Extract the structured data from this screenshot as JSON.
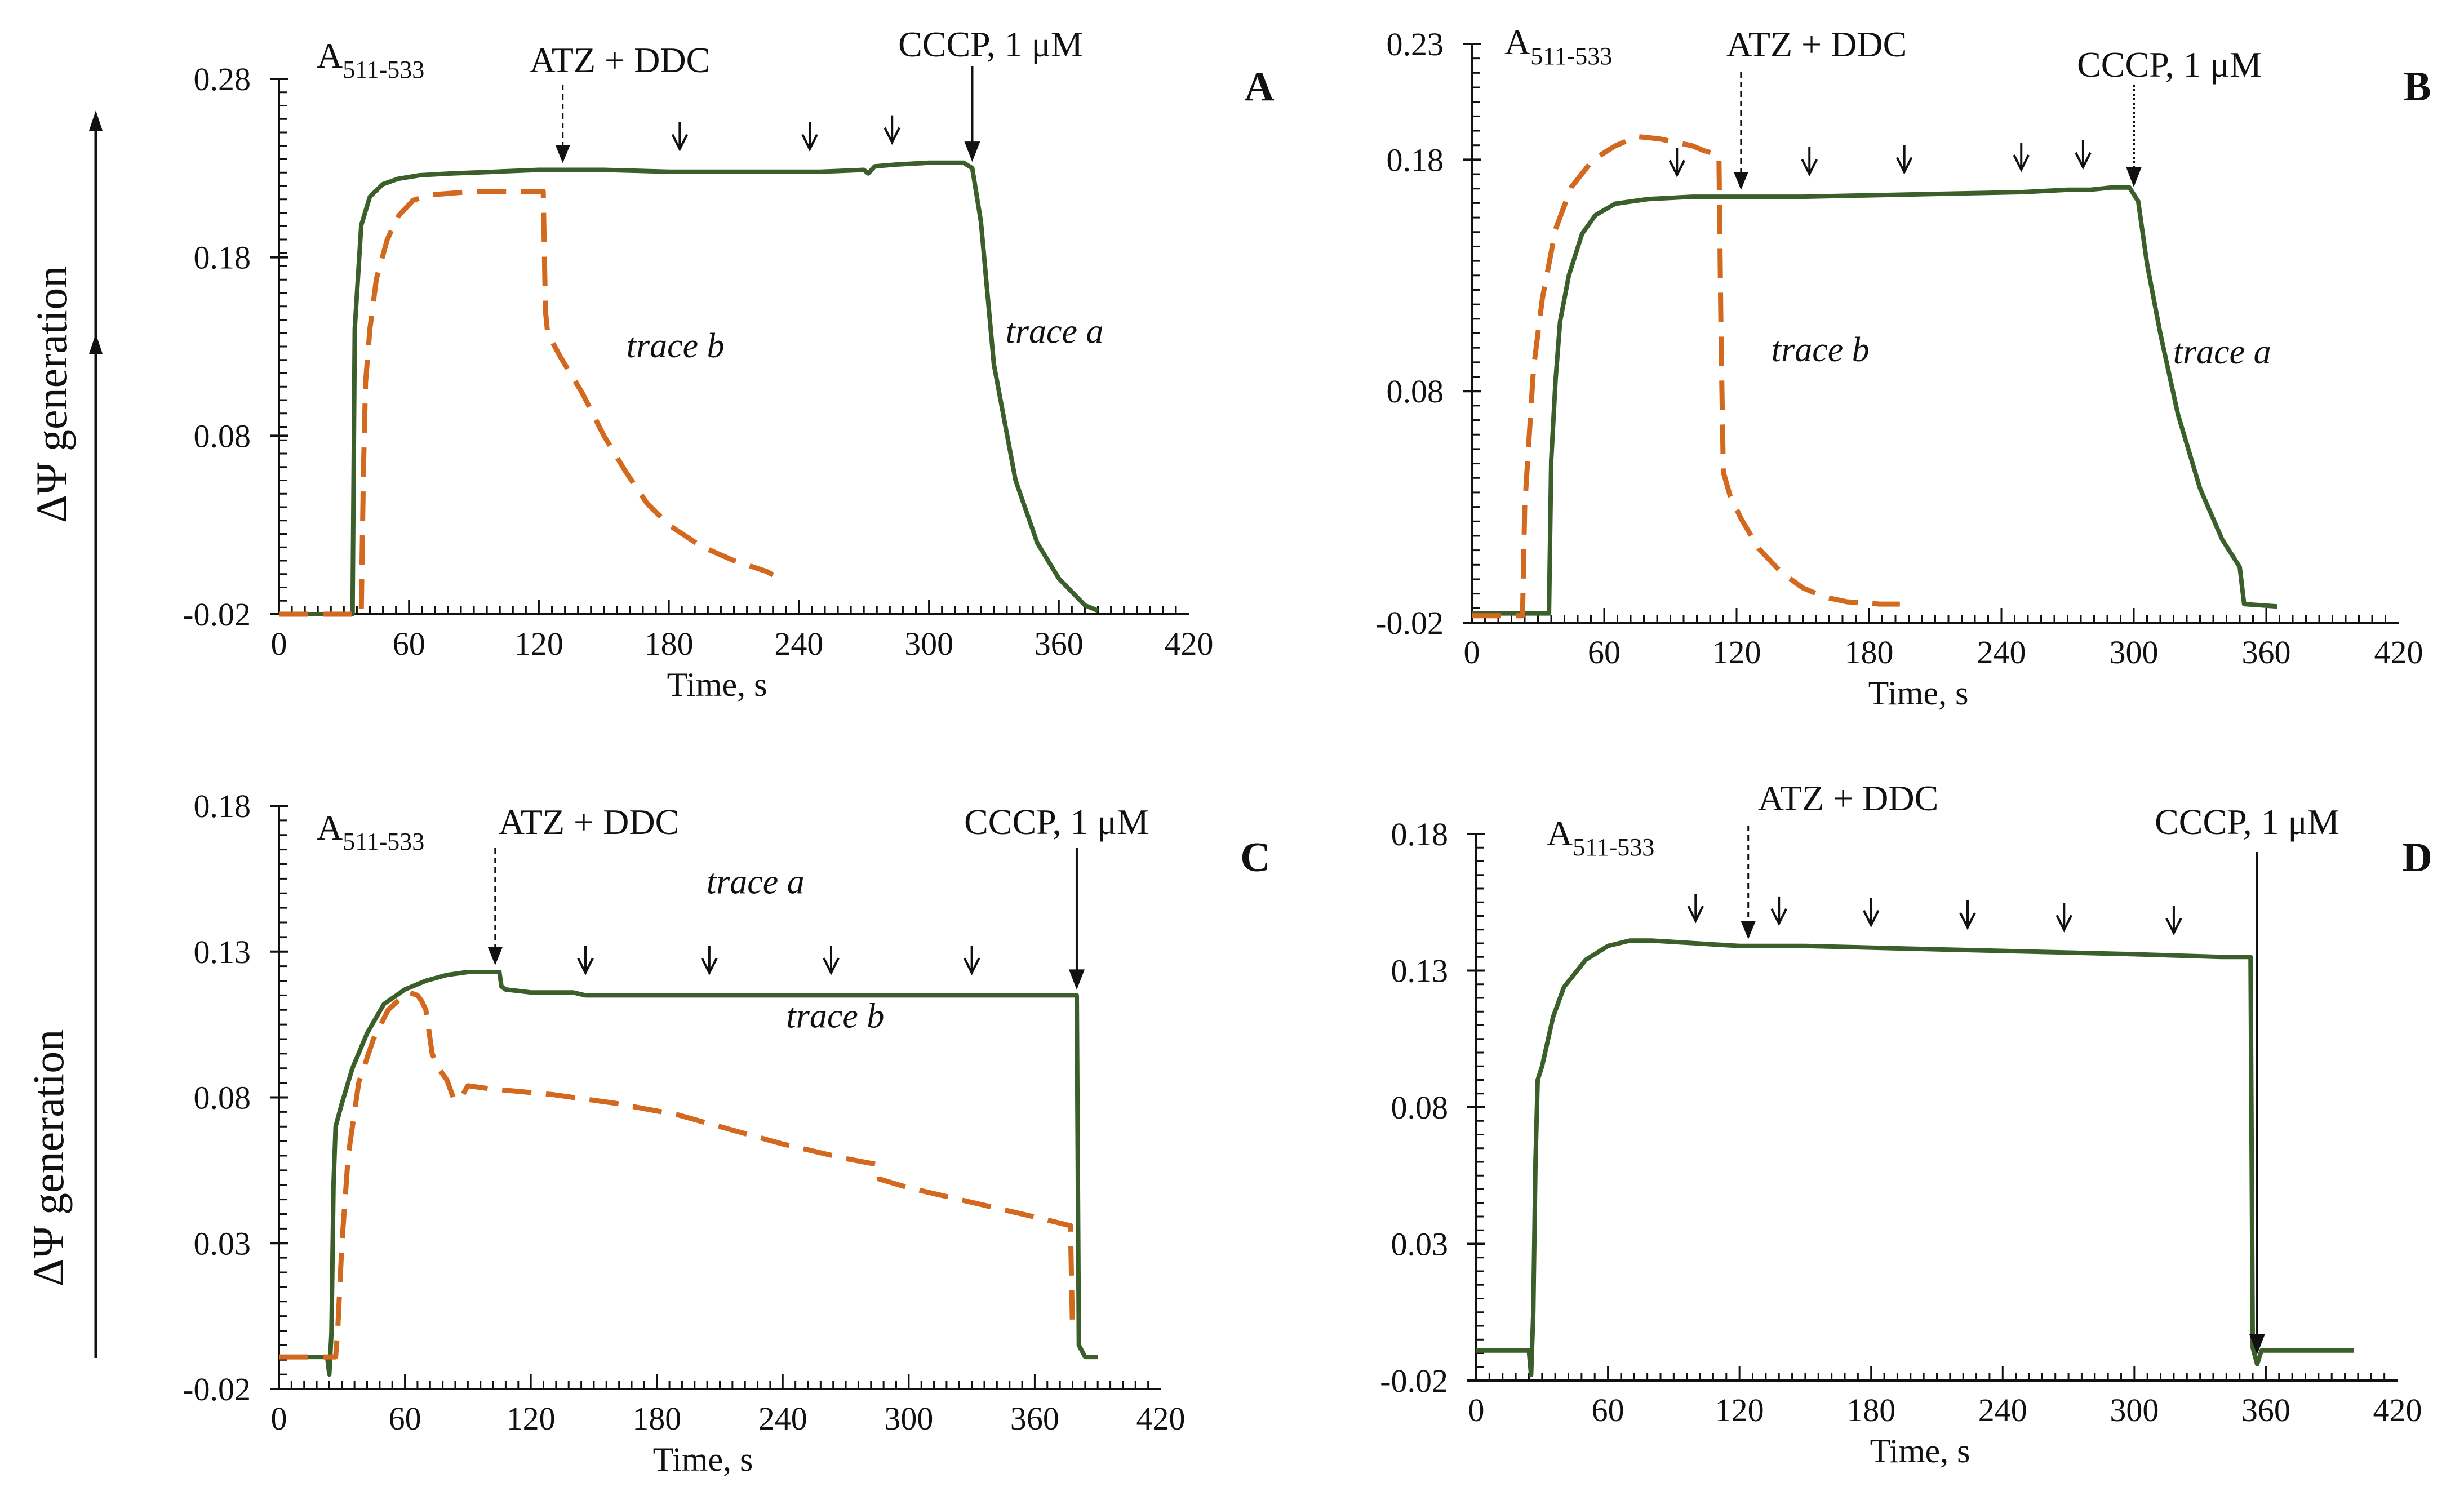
{
  "figure": {
    "y_axis_title": "ΔΨ generation",
    "y_axis_titles_shown_on": [
      "A",
      "C"
    ],
    "x_axis_title": "Time, s"
  },
  "colors": {
    "trace_a": "#3a5f2a",
    "trace_b": "#d2691e",
    "axis": "#111111"
  },
  "chart_data": [
    {
      "panel": "A",
      "type": "line",
      "xlabel": "Time, s",
      "ylabel": "ΔΨ generation",
      "xlim": [
        0,
        420
      ],
      "ylim": [
        -0.02,
        0.28
      ],
      "xticks": [
        0,
        60,
        120,
        180,
        240,
        300,
        360,
        420
      ],
      "xtick_labels": [
        "0",
        "60",
        "120",
        "180",
        "240",
        "300",
        "360",
        "420"
      ],
      "yticks": [
        -0.02,
        0.08,
        0.18,
        0.28
      ],
      "ytick_labels": [
        "-0.02",
        "0.08",
        "0.18",
        "0.28"
      ],
      "annotations": {
        "label": "A",
        "label_sub": "511-533",
        "atz_text": "ATZ + DDC",
        "atz_time": 131,
        "cccp_text": "CCCP, 1 μM",
        "cccp_time": 320,
        "small_arrow_times": [
          185,
          245,
          283
        ]
      },
      "trace_labels": [
        {
          "series": "trace b",
          "text": "trace b",
          "x": 183,
          "y": 0.124
        },
        {
          "series": "trace a",
          "text": "trace a",
          "x": 358,
          "y": 0.132
        }
      ],
      "series": [
        {
          "name": "trace a",
          "style": "solid",
          "x": [
            0,
            34,
            35,
            38,
            42,
            48,
            55,
            65,
            80,
            100,
            120,
            131,
            150,
            180,
            220,
            250,
            270,
            272,
            275,
            285,
            300,
            316,
            320,
            324,
            330,
            340,
            350,
            360,
            372,
            378
          ],
          "y": [
            -0.02,
            -0.02,
            0.14,
            0.198,
            0.214,
            0.221,
            0.224,
            0.226,
            0.227,
            0.228,
            0.229,
            0.229,
            0.229,
            0.228,
            0.228,
            0.228,
            0.229,
            0.227,
            0.231,
            0.232,
            0.233,
            0.233,
            0.23,
            0.2,
            0.12,
            0.055,
            0.02,
            0.0,
            -0.015,
            -0.018
          ]
        },
        {
          "name": "trace b",
          "style": "dashed",
          "x": [
            0,
            38,
            39,
            40,
            42,
            45,
            50,
            55,
            62,
            70,
            80,
            90,
            100,
            110,
            122,
            123,
            124,
            126,
            130,
            140,
            150,
            160,
            170,
            180,
            195,
            210,
            225,
            228
          ],
          "y": [
            -0.02,
            -0.02,
            0.06,
            0.11,
            0.14,
            0.168,
            0.19,
            0.203,
            0.212,
            0.215,
            0.216,
            0.217,
            0.217,
            0.217,
            0.217,
            0.15,
            0.138,
            0.133,
            0.124,
            0.104,
            0.08,
            0.06,
            0.042,
            0.03,
            0.018,
            0.01,
            0.004,
            0.002
          ]
        }
      ]
    },
    {
      "panel": "B",
      "type": "line",
      "xlabel": "Time, s",
      "ylabel": "",
      "xlim": [
        0,
        420
      ],
      "ylim": [
        -0.02,
        0.23
      ],
      "xticks": [
        0,
        60,
        120,
        180,
        240,
        300,
        360,
        420
      ],
      "xtick_labels": [
        "0",
        "60",
        "120",
        "180",
        "240",
        "300",
        "360",
        "420"
      ],
      "yticks": [
        -0.02,
        0.08,
        0.18,
        0.23
      ],
      "ytick_labels": [
        "-0.02",
        "0.08",
        "0.18",
        "0.23"
      ],
      "annotations": {
        "label": "A",
        "label_sub": "511-533",
        "atz_text": "ATZ + DDC",
        "atz_time": 122,
        "cccp_text": "CCCP, 1 μM",
        "cccp_time": 300,
        "small_arrow_times": [
          93,
          153,
          196,
          249,
          277
        ]
      },
      "trace_labels": [
        {
          "series": "trace b",
          "text": "trace b",
          "x": 158,
          "y": 0.093
        },
        {
          "series": "trace a",
          "text": "trace a",
          "x": 340,
          "y": 0.092
        }
      ],
      "series": [
        {
          "name": "trace a",
          "style": "solid",
          "x": [
            0,
            35,
            36,
            38,
            40,
            44,
            50,
            56,
            65,
            80,
            100,
            120,
            150,
            200,
            250,
            270,
            280,
            290,
            295,
            298,
            302,
            306,
            312,
            320,
            330,
            340,
            348,
            350,
            365
          ],
          "y": [
            -0.016,
            -0.016,
            0.05,
            0.085,
            0.11,
            0.13,
            0.148,
            0.156,
            0.161,
            0.163,
            0.164,
            0.164,
            0.164,
            0.165,
            0.166,
            0.167,
            0.167,
            0.168,
            0.168,
            0.168,
            0.162,
            0.135,
            0.105,
            0.07,
            0.038,
            0.016,
            0.004,
            -0.012,
            -0.013
          ]
        },
        {
          "name": "trace b",
          "style": "dashed",
          "x": [
            0,
            23,
            24,
            26,
            28,
            32,
            38,
            45,
            55,
            65,
            75,
            85,
            95,
            100,
            105,
            112,
            113,
            114,
            117,
            122,
            130,
            140,
            150,
            160,
            170,
            185,
            194
          ],
          "y": [
            -0.017,
            -0.017,
            0.03,
            0.06,
            0.09,
            0.12,
            0.15,
            0.168,
            0.18,
            0.186,
            0.19,
            0.189,
            0.187,
            0.186,
            0.184,
            0.182,
            0.1,
            0.045,
            0.035,
            0.025,
            0.012,
            0.002,
            -0.005,
            -0.009,
            -0.011,
            -0.012,
            -0.012
          ]
        }
      ]
    },
    {
      "panel": "C",
      "type": "line",
      "xlabel": "Time, s",
      "ylabel": "ΔΨ generation",
      "xlim": [
        0,
        420
      ],
      "ylim": [
        -0.02,
        0.18
      ],
      "xticks": [
        0,
        60,
        120,
        180,
        240,
        300,
        360,
        420
      ],
      "xtick_labels": [
        "0",
        "60",
        "120",
        "180",
        "240",
        "300",
        "360",
        "420"
      ],
      "yticks": [
        -0.02,
        0.03,
        0.08,
        0.13,
        0.18
      ],
      "ytick_labels": [
        "-0.02",
        "0.03",
        "0.08",
        "0.13",
        "0.18"
      ],
      "annotations": {
        "label": "A",
        "label_sub": "511-533",
        "atz_text": "ATZ + DDC",
        "atz_time": 103,
        "cccp_text": "CCCP, 1 μM",
        "cccp_time": 380,
        "small_arrow_times": [
          146,
          205,
          263,
          330
        ]
      },
      "trace_labels": [
        {
          "series": "trace a",
          "text": "trace a",
          "x": 227,
          "y": 0.15
        },
        {
          "series": "trace b",
          "text": "trace b",
          "x": 265,
          "y": 0.104
        }
      ],
      "series": [
        {
          "name": "trace a",
          "style": "solid",
          "x": [
            0,
            23,
            24,
            25,
            26,
            27,
            30,
            35,
            42,
            50,
            60,
            70,
            80,
            90,
            100,
            105,
            106,
            108,
            120,
            140,
            146,
            150,
            200,
            250,
            300,
            350,
            380,
            381,
            384,
            390
          ],
          "y": [
            -0.009,
            -0.009,
            -0.015,
            -0.001,
            0.05,
            0.07,
            0.078,
            0.09,
            0.102,
            0.112,
            0.117,
            0.12,
            0.122,
            0.123,
            0.123,
            0.123,
            0.118,
            0.117,
            0.116,
            0.116,
            0.115,
            0.115,
            0.115,
            0.115,
            0.115,
            0.115,
            0.115,
            -0.005,
            -0.009,
            -0.009
          ]
        },
        {
          "name": "trace b",
          "style": "dashed",
          "x": [
            0,
            27,
            28,
            30,
            33,
            38,
            45,
            52,
            58,
            62,
            66,
            68,
            70,
            71,
            73,
            76,
            80,
            83,
            86,
            90,
            100,
            130,
            160,
            190,
            210,
            240,
            270,
            285,
            286,
            300,
            330,
            360,
            377,
            378
          ],
          "y": [
            -0.009,
            -0.009,
            0.0,
            0.03,
            0.06,
            0.085,
            0.1,
            0.11,
            0.114,
            0.116,
            0.115,
            0.113,
            0.11,
            0.105,
            0.095,
            0.09,
            0.086,
            0.08,
            0.079,
            0.084,
            0.083,
            0.081,
            0.078,
            0.074,
            0.07,
            0.064,
            0.059,
            0.057,
            0.052,
            0.049,
            0.044,
            0.039,
            0.036,
            0.0
          ]
        }
      ]
    },
    {
      "panel": "D",
      "type": "line",
      "xlabel": "Time, s",
      "ylabel": "",
      "xlim": [
        0,
        420
      ],
      "ylim": [
        -0.02,
        0.18
      ],
      "xticks": [
        0,
        60,
        120,
        180,
        240,
        300,
        360,
        420
      ],
      "xtick_labels": [
        "0",
        "60",
        "120",
        "180",
        "240",
        "300",
        "360",
        "420"
      ],
      "yticks": [
        -0.02,
        0.03,
        0.08,
        0.13,
        0.18
      ],
      "ytick_labels": [
        "-0.02",
        "0.03",
        "0.08",
        "0.13",
        "0.18"
      ],
      "annotations": {
        "label": "A",
        "label_sub": "511-533",
        "atz_text": "ATZ + DDC",
        "atz_time": 124,
        "cccp_text": "CCCP, 1 μM",
        "cccp_time": 356,
        "small_arrow_times": [
          100,
          138,
          180,
          224,
          268,
          318
        ]
      },
      "trace_labels": [],
      "series": [
        {
          "name": "trace a",
          "style": "solid",
          "x": [
            0,
            24,
            25,
            26,
            27,
            28,
            30,
            35,
            40,
            50,
            60,
            70,
            80,
            100,
            120,
            150,
            200,
            250,
            300,
            340,
            353,
            354,
            356,
            358,
            370,
            400
          ],
          "y": [
            -0.009,
            -0.009,
            -0.018,
            0.005,
            0.06,
            0.09,
            0.095,
            0.113,
            0.124,
            0.134,
            0.139,
            0.141,
            0.141,
            0.14,
            0.139,
            0.139,
            0.138,
            0.137,
            0.136,
            0.135,
            0.135,
            -0.008,
            -0.014,
            -0.009,
            -0.009,
            -0.009
          ]
        }
      ]
    }
  ]
}
